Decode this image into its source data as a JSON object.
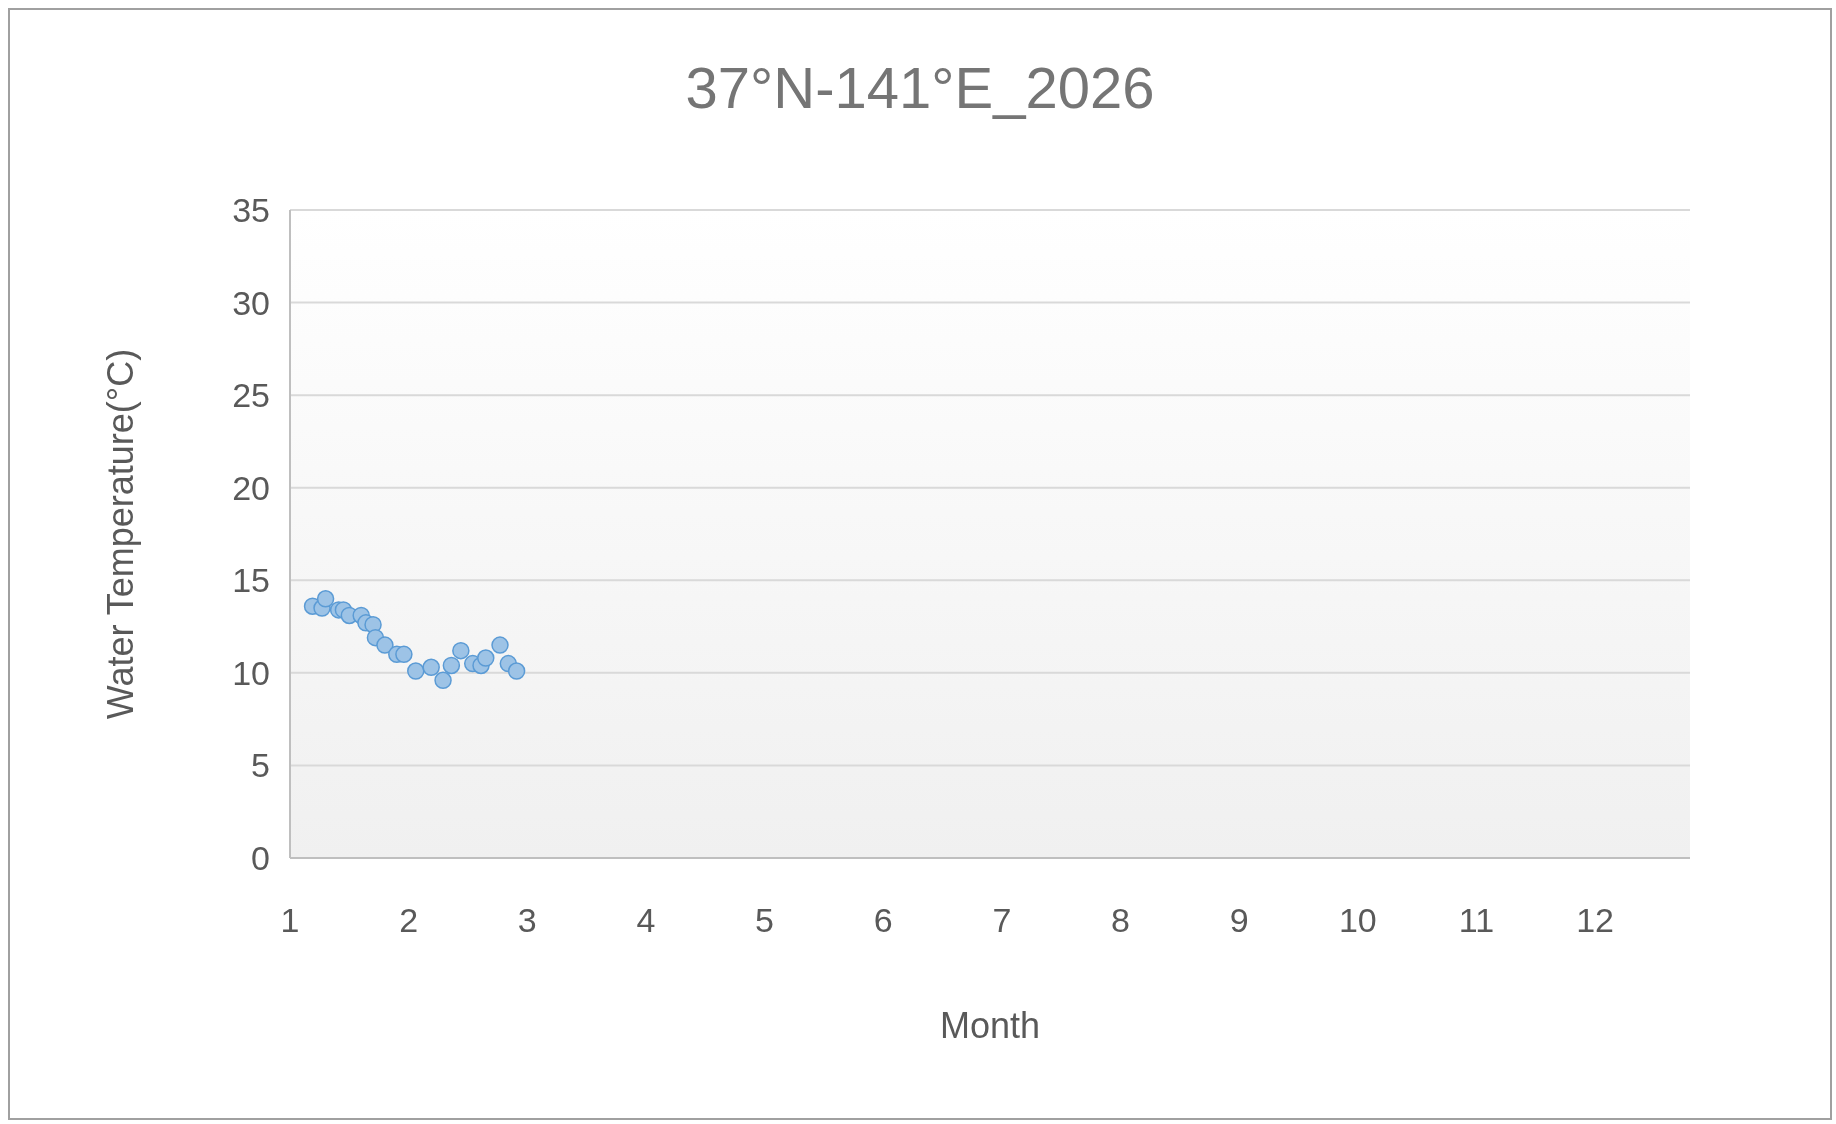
{
  "chart_data": {
    "type": "scatter",
    "title": "37°N-141°E_2026",
    "xlabel": "Month",
    "ylabel": "Water Temperature(°C)",
    "series": [
      {
        "color": "#5b9bd5",
        "x": [
          1.19,
          1.27,
          1.3,
          1.41,
          1.45,
          1.5,
          1.6,
          1.64,
          1.7,
          1.72,
          1.8,
          1.9,
          1.96,
          2.06,
          2.19,
          2.29,
          2.36,
          2.44,
          2.54,
          2.61,
          2.65,
          2.77,
          2.84,
          2.91
        ],
        "values": [
          13.6,
          13.5,
          14.0,
          13.4,
          13.4,
          13.1,
          13.1,
          12.7,
          12.6,
          11.9,
          11.5,
          11.0,
          11.0,
          10.1,
          10.3,
          9.6,
          10.4,
          11.2,
          10.5,
          10.4,
          10.8,
          11.5,
          10.5,
          10.1
        ]
      }
    ],
    "xlim": [
      1,
      12.8
    ],
    "xticks": [
      1,
      2,
      3,
      4,
      5,
      6,
      7,
      8,
      9,
      10,
      11,
      12
    ],
    "ylim": [
      0,
      35
    ],
    "yticks": [
      0,
      5,
      10,
      15,
      20,
      25,
      30,
      35
    ],
    "grid": "y",
    "marker": "circle",
    "legend": false
  }
}
